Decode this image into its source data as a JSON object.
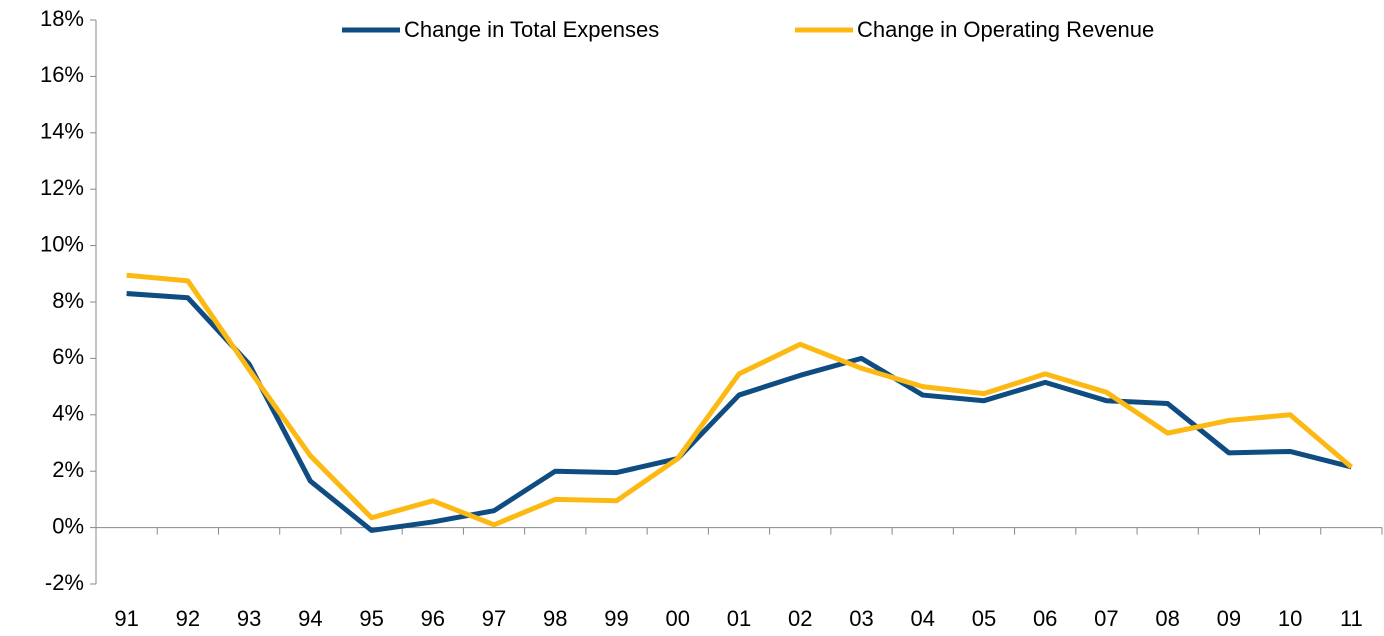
{
  "chart_data": {
    "type": "line",
    "categories": [
      "91",
      "92",
      "93",
      "94",
      "95",
      "96",
      "97",
      "98",
      "99",
      "00",
      "01",
      "02",
      "03",
      "04",
      "05",
      "06",
      "07",
      "08",
      "09",
      "10",
      "11"
    ],
    "series": [
      {
        "name": "Change in Total Expenses",
        "color": "#0f4c81",
        "values": [
          8.3,
          8.15,
          5.8,
          1.65,
          -0.1,
          0.2,
          0.6,
          2.0,
          1.95,
          2.45,
          4.7,
          5.4,
          6.0,
          4.7,
          4.5,
          5.15,
          4.5,
          4.4,
          2.65,
          2.7,
          2.15
        ]
      },
      {
        "name": "Change in Operating Revenue",
        "color": "#fdb913",
        "values": [
          8.95,
          8.75,
          5.6,
          2.55,
          0.35,
          0.95,
          0.1,
          1.0,
          0.95,
          2.45,
          5.45,
          6.5,
          5.65,
          5.0,
          4.75,
          5.45,
          4.8,
          3.35,
          3.8,
          4.0,
          2.15
        ]
      }
    ],
    "ylim": [
      -2,
      18
    ],
    "yticks": [
      {
        "value": -2,
        "label": "-2%"
      },
      {
        "value": 0,
        "label": "0%"
      },
      {
        "value": 2,
        "label": "2%"
      },
      {
        "value": 4,
        "label": "4%"
      },
      {
        "value": 6,
        "label": "6%"
      },
      {
        "value": 8,
        "label": "8%"
      },
      {
        "value": 10,
        "label": "10%"
      },
      {
        "value": 12,
        "label": "12%"
      },
      {
        "value": 14,
        "label": "14%"
      },
      {
        "value": 16,
        "label": "16%"
      },
      {
        "value": 18,
        "label": "18%"
      }
    ],
    "grid": false,
    "legend": "top"
  }
}
